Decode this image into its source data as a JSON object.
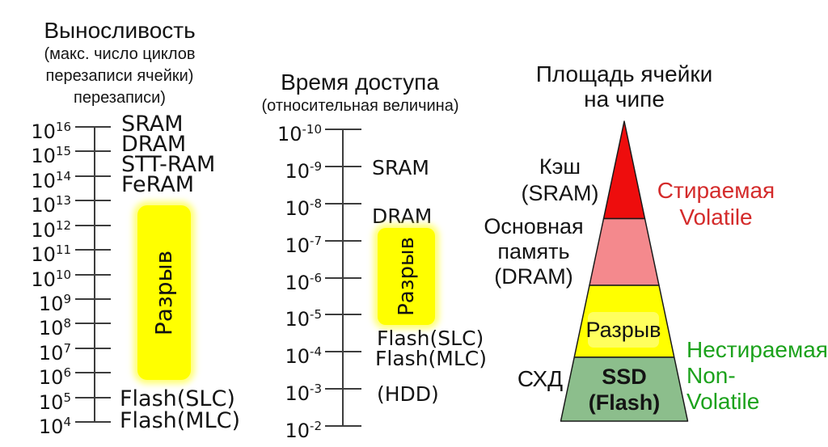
{
  "colors": {
    "gap_yellow": "#FFFF00",
    "gap_inner_yellow": "#FFFF5E",
    "pyramid_red": "#EE0D0D",
    "pyramid_pink": "#F4898D",
    "pyramid_yellow": "#FFFF00",
    "pyramid_green": "#8CBE8C",
    "volatile_text": "#D42B2B",
    "nonvolatile_text": "#1CA21C"
  },
  "endurance_chart": {
    "title": "Выносливость",
    "subtitle_lines": [
      "(макс. число циклов",
      "перезаписи ячейки)",
      "перезаписи)"
    ],
    "tick_base": "10",
    "tick_exponents": [
      "16",
      "15",
      "14",
      "13",
      "12",
      "11",
      "10",
      "9",
      "8",
      "7",
      "6",
      "5",
      "4"
    ],
    "top_labels": [
      "SRAM",
      "DRAM",
      "STT-RAM",
      "FeRAM"
    ],
    "gap_label": "Разрыв",
    "bottom_labels": [
      "Flash(SLC)",
      "Flash(MLC)"
    ]
  },
  "access_chart": {
    "title": "Время доступа",
    "subtitle": "(относительная величина)",
    "tick_base": "10",
    "tick_exponents": [
      "-10",
      "-9",
      "-8",
      "-7",
      "-6",
      "-5",
      "-4",
      "-3",
      "-2"
    ],
    "labels": {
      "sram": "SRAM",
      "dram": "DRAM",
      "gap": "Разрыв",
      "flash_slc": "Flash(SLC)",
      "flash_mlc": "Flash(MLC)",
      "hdd": "(HDD)"
    }
  },
  "pyramid": {
    "title_lines": [
      "Площадь ячейки",
      "на чипе"
    ],
    "left_labels": {
      "cache_line1": "Кэш",
      "cache_line2": "(SRAM)",
      "main_line1": "Основная",
      "main_line2": "память",
      "main_line3": "(DRAM)",
      "storage": "СХД"
    },
    "section_labels": {
      "gap": "Разрыв",
      "ssd_line1": "SSD",
      "ssd_line2": "(Flash)"
    },
    "right_labels": {
      "volatile_line1": "Стираемая",
      "volatile_line2": "Volatile",
      "nonvolatile_line1": "Нестираемая",
      "nonvolatile_line2": "Non-",
      "nonvolatile_line3": "Volatile"
    }
  }
}
